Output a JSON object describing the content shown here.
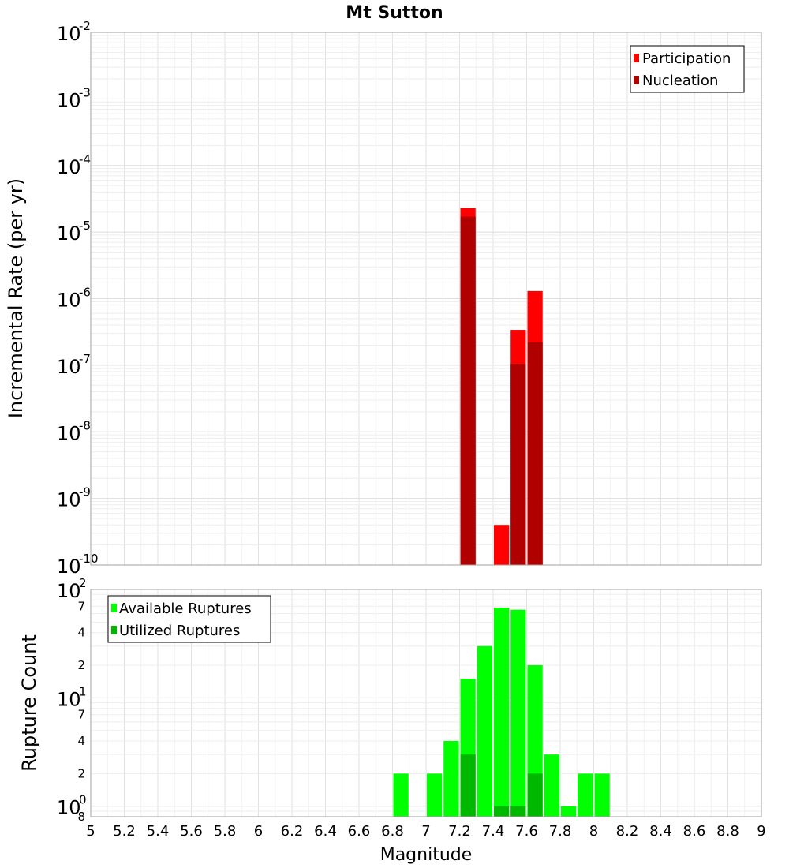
{
  "colors": {
    "participation": "#ff0000",
    "nucleation": "#b00000",
    "available": "#00ff00",
    "utilized": "#00b800"
  },
  "chart_data": [
    {
      "type": "bar",
      "title": "Mt Sutton",
      "xlabel": "",
      "ylabel": "Incremental Rate (per yr)",
      "yscale": "log",
      "xlim": [
        5,
        9
      ],
      "ylim": [
        1e-10,
        0.01
      ],
      "grid": true,
      "legend_position": "top-right",
      "x": [
        7.25,
        7.45,
        7.55,
        7.65
      ],
      "series": [
        {
          "name": "Participation",
          "color": "#ff0000",
          "values": [
            2.3e-05,
            4e-10,
            3.4e-07,
            1.3e-06
          ]
        },
        {
          "name": "Nucleation",
          "color": "#b00000",
          "values": [
            1.7e-05,
            1e-10,
            1.05e-07,
            2.2e-07
          ]
        }
      ]
    },
    {
      "type": "bar",
      "title": "",
      "xlabel": "Magnitude",
      "ylabel": "Rupture Count",
      "yscale": "log",
      "xlim": [
        5,
        9
      ],
      "ylim": [
        0.8,
        100
      ],
      "grid": true,
      "legend_position": "top-left",
      "x_ticks": [
        "5",
        "5.2",
        "5.4",
        "5.6",
        "5.8",
        "6",
        "6.2",
        "6.4",
        "6.6",
        "6.8",
        "7",
        "7.2",
        "7.4",
        "7.6",
        "7.8",
        "8",
        "8.2",
        "8.4",
        "8.6",
        "8.8",
        "9"
      ],
      "y_major_ticks": [
        {
          "base": "10",
          "exp": "0",
          "value": 1
        },
        {
          "base": "10",
          "exp": "1",
          "value": 10
        },
        {
          "base": "10",
          "exp": "2",
          "value": 100
        }
      ],
      "y_minor_ticks": [
        {
          "label": "8",
          "value": 0.8
        },
        {
          "label": "2",
          "value": 2
        },
        {
          "label": "4",
          "value": 4
        },
        {
          "label": "7",
          "value": 7
        },
        {
          "label": "2",
          "value": 20
        },
        {
          "label": "4",
          "value": 40
        },
        {
          "label": "7",
          "value": 70
        }
      ],
      "x": [
        6.85,
        7.05,
        7.15,
        7.25,
        7.35,
        7.45,
        7.55,
        7.65,
        7.75,
        7.85,
        7.95,
        8.05
      ],
      "series": [
        {
          "name": "Available Ruptures",
          "color": "#00ff00",
          "values": [
            2,
            2,
            4,
            15,
            30,
            68,
            65,
            20,
            3,
            1,
            2,
            2
          ]
        },
        {
          "name": "Utilized Ruptures",
          "color": "#00b800",
          "values": [
            0,
            0,
            0,
            3,
            0,
            1,
            1,
            2,
            0,
            0,
            0,
            0
          ]
        }
      ]
    }
  ],
  "top_axis": {
    "y_major_ticks": [
      {
        "base": "10",
        "exp": "-2",
        "value": 0.01
      },
      {
        "base": "10",
        "exp": "-3",
        "value": 0.001
      },
      {
        "base": "10",
        "exp": "-4",
        "value": 0.0001
      },
      {
        "base": "10",
        "exp": "-5",
        "value": 1e-05
      },
      {
        "base": "10",
        "exp": "-6",
        "value": 1e-06
      },
      {
        "base": "10",
        "exp": "-7",
        "value": 1e-07
      },
      {
        "base": "10",
        "exp": "-8",
        "value": 1e-08
      },
      {
        "base": "10",
        "exp": "-9",
        "value": 1e-09
      },
      {
        "base": "10",
        "exp": "-10",
        "value": 1e-10
      }
    ]
  }
}
